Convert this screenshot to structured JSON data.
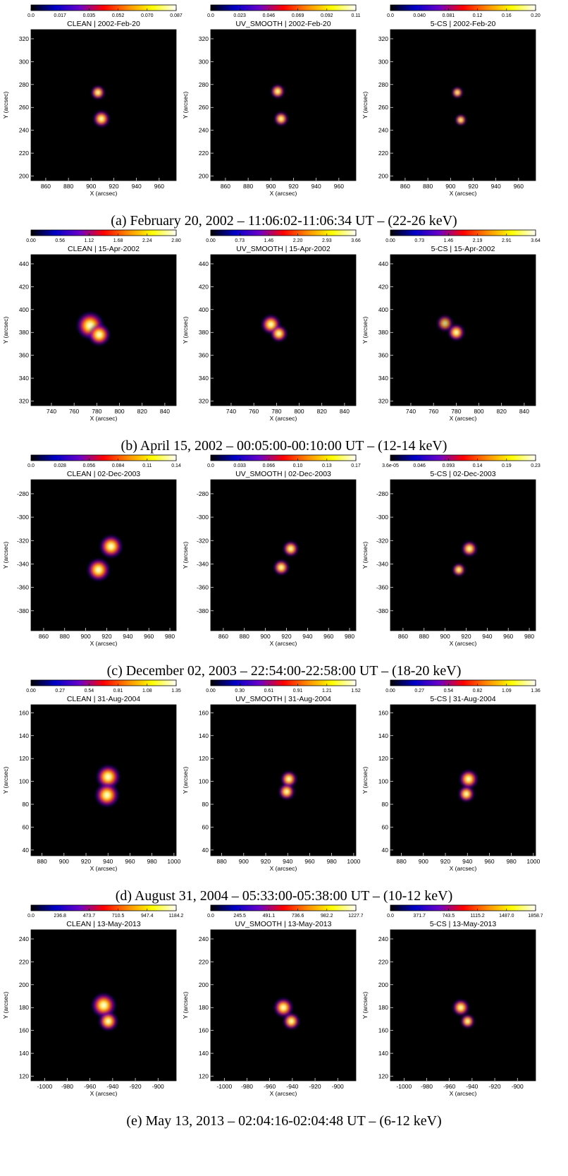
{
  "colormap": {
    "name": "blue-red-yellow-white",
    "stops": [
      "#000000",
      "#0000c8",
      "#6a00c8",
      "#ff0000",
      "#ff8c00",
      "#ffff00",
      "#ffffff"
    ]
  },
  "rows": [
    {
      "caption": "(a) February 20, 2002 – 11:06:02-11:06:34 UT – (22-26 keV)"
    },
    {
      "caption": "(b) April 15, 2002 – 00:05:00-00:10:00 UT – (12-14 keV)"
    },
    {
      "caption": "(c) December 02, 2003 – 22:54:00-22:58:00 UT – (18-20 keV)"
    },
    {
      "caption": "(d) August 31, 2004 – 05:33:00-05:38:00 UT – (10-12 keV)"
    },
    {
      "caption": "(e) May 13, 2013 – 02:04:16-02:04:48 UT – (6-12 keV)"
    }
  ],
  "chart_data": [
    {
      "type": "heatmap",
      "row": 0,
      "col": 0,
      "title": "CLEAN | 2002-Feb-20",
      "colorbar_ticks": [
        "0.0",
        "0.017",
        "0.035",
        "0.052",
        "0.070",
        "0.087"
      ],
      "xlabel": "X (arcsec)",
      "ylabel": "Y (arcsec)",
      "xticks": [
        860,
        880,
        900,
        920,
        940,
        960
      ],
      "yticks": [
        200,
        220,
        240,
        260,
        280,
        300,
        320
      ],
      "xlim": [
        847,
        975
      ],
      "ylim": [
        196,
        328
      ],
      "sources": [
        {
          "x": 906,
          "y": 273,
          "r": 5,
          "a": 1.0
        },
        {
          "x": 909,
          "y": 250,
          "r": 6,
          "a": 1.0
        }
      ]
    },
    {
      "type": "heatmap",
      "row": 0,
      "col": 1,
      "title": "UV_SMOOTH | 2002-Feb-20",
      "colorbar_ticks": [
        "0.0",
        "0.023",
        "0.046",
        "0.069",
        "0.092",
        "0.11"
      ],
      "xlabel": "X (arcsec)",
      "ylabel": "Y (arcsec)",
      "xticks": [
        860,
        880,
        900,
        920,
        940,
        960
      ],
      "yticks": [
        200,
        220,
        240,
        260,
        280,
        300,
        320
      ],
      "xlim": [
        847,
        975
      ],
      "ylim": [
        196,
        328
      ],
      "sources": [
        {
          "x": 906,
          "y": 274,
          "r": 5,
          "a": 1.0
        },
        {
          "x": 909,
          "y": 250,
          "r": 5,
          "a": 1.0
        }
      ]
    },
    {
      "type": "heatmap",
      "row": 0,
      "col": 2,
      "title": "5-CS | 2002-Feb-20",
      "colorbar_ticks": [
        "0.0",
        "0.040",
        "0.081",
        "0.12",
        "0.16",
        "0.20"
      ],
      "xlabel": "X (arcsec)",
      "ylabel": "Y (arcsec)",
      "xticks": [
        860,
        880,
        900,
        920,
        940,
        960
      ],
      "yticks": [
        200,
        220,
        240,
        260,
        280,
        300,
        320
      ],
      "xlim": [
        847,
        975
      ],
      "ylim": [
        196,
        328
      ],
      "sources": [
        {
          "x": 906,
          "y": 273,
          "r": 4,
          "a": 1.0
        },
        {
          "x": 909,
          "y": 249,
          "r": 4,
          "a": 1.0
        }
      ]
    },
    {
      "type": "heatmap",
      "row": 1,
      "col": 0,
      "title": "CLEAN | 15-Apr-2002",
      "colorbar_ticks": [
        "0.00",
        "0.56",
        "1.12",
        "1.68",
        "2.24",
        "2.80"
      ],
      "xlabel": "X (arcsec)",
      "ylabel": "Y (arcsec)",
      "xticks": [
        740,
        760,
        780,
        800,
        820,
        840
      ],
      "yticks": [
        320,
        340,
        360,
        380,
        400,
        420,
        440
      ],
      "xlim": [
        722,
        850
      ],
      "ylim": [
        316,
        448
      ],
      "sources": [
        {
          "x": 774,
          "y": 386,
          "r": 10,
          "a": 1.0
        },
        {
          "x": 782,
          "y": 378,
          "r": 8,
          "a": 1.0
        }
      ]
    },
    {
      "type": "heatmap",
      "row": 1,
      "col": 1,
      "title": "UV_SMOOTH | 15-Apr-2002",
      "colorbar_ticks": [
        "0.00",
        "0.73",
        "1.46",
        "2.20",
        "2.93",
        "3.66"
      ],
      "xlabel": "X (arcsec)",
      "ylabel": "Y (arcsec)",
      "xticks": [
        740,
        760,
        780,
        800,
        820,
        840
      ],
      "yticks": [
        320,
        340,
        360,
        380,
        400,
        420,
        440
      ],
      "xlim": [
        722,
        850
      ],
      "ylim": [
        316,
        448
      ],
      "sources": [
        {
          "x": 775,
          "y": 387,
          "r": 7,
          "a": 1.0
        },
        {
          "x": 782,
          "y": 379,
          "r": 6,
          "a": 1.0
        }
      ]
    },
    {
      "type": "heatmap",
      "row": 1,
      "col": 2,
      "title": "5-CS | 15-Apr-2002",
      "colorbar_ticks": [
        "0.00",
        "0.73",
        "1.46",
        "2.19",
        "2.91",
        "3.64"
      ],
      "xlabel": "X (arcsec)",
      "ylabel": "Y (arcsec)",
      "xticks": [
        740,
        760,
        780,
        800,
        820,
        840
      ],
      "yticks": [
        320,
        340,
        360,
        380,
        400,
        420,
        440
      ],
      "xlim": [
        722,
        850
      ],
      "ylim": [
        316,
        448
      ],
      "sources": [
        {
          "x": 770,
          "y": 388,
          "r": 6,
          "a": 0.8
        },
        {
          "x": 780,
          "y": 380,
          "r": 6,
          "a": 1.0
        }
      ]
    },
    {
      "type": "heatmap",
      "row": 2,
      "col": 0,
      "title": "CLEAN | 02-Dec-2003",
      "colorbar_ticks": [
        "0.0",
        "0.028",
        "0.056",
        "0.084",
        "0.11",
        "0.14"
      ],
      "xlabel": "X (arcsec)",
      "ylabel": "Y (arcsec)",
      "xticks": [
        860,
        880,
        900,
        920,
        940,
        960,
        980
      ],
      "yticks": [
        -380,
        -360,
        -340,
        -320,
        -300,
        -280
      ],
      "xlim": [
        848,
        986
      ],
      "ylim": [
        -397,
        -268
      ],
      "sources": [
        {
          "x": 924,
          "y": -325,
          "r": 9,
          "a": 1.0
        },
        {
          "x": 912,
          "y": -345,
          "r": 9,
          "a": 1.0
        }
      ]
    },
    {
      "type": "heatmap",
      "row": 2,
      "col": 1,
      "title": "UV_SMOOTH | 02-Dec-2003",
      "colorbar_ticks": [
        "0.0",
        "0.033",
        "0.066",
        "0.10",
        "0.13",
        "0.17"
      ],
      "xlabel": "X (arcsec)",
      "ylabel": "Y (arcsec)",
      "xticks": [
        860,
        880,
        900,
        920,
        940,
        960,
        980
      ],
      "yticks": [
        -380,
        -360,
        -340,
        -320,
        -300,
        -280
      ],
      "xlim": [
        848,
        986
      ],
      "ylim": [
        -397,
        -268
      ],
      "sources": [
        {
          "x": 924,
          "y": -327,
          "r": 6,
          "a": 1.0
        },
        {
          "x": 915,
          "y": -343,
          "r": 6,
          "a": 1.0
        }
      ]
    },
    {
      "type": "heatmap",
      "row": 2,
      "col": 2,
      "title": "5-CS | 02-Dec-2003",
      "colorbar_ticks": [
        "3.6e-05",
        "0.046",
        "0.093",
        "0.14",
        "0.19",
        "0.23"
      ],
      "xlabel": "X (arcsec)",
      "ylabel": "Y (arcsec)",
      "xticks": [
        860,
        880,
        900,
        920,
        940,
        960,
        980
      ],
      "yticks": [
        -380,
        -360,
        -340,
        -320,
        -300,
        -280
      ],
      "xlim": [
        848,
        986
      ],
      "ylim": [
        -397,
        -268
      ],
      "sources": [
        {
          "x": 923,
          "y": -327,
          "r": 6,
          "a": 1.0
        },
        {
          "x": 913,
          "y": -345,
          "r": 5,
          "a": 1.0
        }
      ]
    },
    {
      "type": "heatmap",
      "row": 3,
      "col": 0,
      "title": "CLEAN | 31-Aug-2004",
      "colorbar_ticks": [
        "0.00",
        "0.27",
        "0.54",
        "0.81",
        "1.08",
        "1.35"
      ],
      "xlabel": "X (arcsec)",
      "ylabel": "Y (arcsec)",
      "xticks": [
        880,
        900,
        920,
        940,
        960,
        980,
        1000
      ],
      "yticks": [
        40,
        60,
        80,
        100,
        120,
        140,
        160
      ],
      "xlim": [
        870,
        1002
      ],
      "ylim": [
        35,
        167
      ],
      "sources": [
        {
          "x": 940,
          "y": 104,
          "r": 9,
          "a": 1.0
        },
        {
          "x": 939,
          "y": 88,
          "r": 9,
          "a": 1.0
        }
      ]
    },
    {
      "type": "heatmap",
      "row": 3,
      "col": 1,
      "title": "UV_SMOOTH | 31-Aug-2004",
      "colorbar_ticks": [
        "0.00",
        "0.30",
        "0.61",
        "0.91",
        "1.21",
        "1.52"
      ],
      "xlabel": "X (arcsec)",
      "ylabel": "Y (arcsec)",
      "xticks": [
        880,
        900,
        920,
        940,
        960,
        980,
        1000
      ],
      "yticks": [
        40,
        60,
        80,
        100,
        120,
        140,
        160
      ],
      "xlim": [
        870,
        1002
      ],
      "ylim": [
        35,
        167
      ],
      "sources": [
        {
          "x": 941,
          "y": 102,
          "r": 6,
          "a": 1.0
        },
        {
          "x": 939,
          "y": 91,
          "r": 6,
          "a": 1.0
        }
      ]
    },
    {
      "type": "heatmap",
      "row": 3,
      "col": 2,
      "title": "5-CS | 31-Aug-2004",
      "colorbar_ticks": [
        "0.00",
        "0.27",
        "0.54",
        "0.82",
        "1.09",
        "1.36"
      ],
      "xlabel": "X (arcsec)",
      "ylabel": "Y (arcsec)",
      "xticks": [
        880,
        900,
        920,
        940,
        960,
        980,
        1000
      ],
      "yticks": [
        40,
        60,
        80,
        100,
        120,
        140,
        160
      ],
      "xlim": [
        870,
        1002
      ],
      "ylim": [
        35,
        167
      ],
      "sources": [
        {
          "x": 941,
          "y": 102,
          "r": 7,
          "a": 1.0
        },
        {
          "x": 939,
          "y": 89,
          "r": 6,
          "a": 1.0
        }
      ]
    },
    {
      "type": "heatmap",
      "row": 4,
      "col": 0,
      "title": "CLEAN | 13-May-2013",
      "colorbar_ticks": [
        "0.0",
        "236.8",
        "473.7",
        "710.5",
        "947.4",
        "1184.2"
      ],
      "xlabel": "X (arcsec)",
      "ylabel": "Y (arcsec)",
      "xticks": [
        -1000,
        -980,
        -960,
        -940,
        -920,
        -900
      ],
      "yticks": [
        120,
        140,
        160,
        180,
        200,
        220,
        240
      ],
      "xlim": [
        -1012,
        -884
      ],
      "ylim": [
        116,
        248
      ],
      "sources": [
        {
          "x": -948,
          "y": 182,
          "r": 9,
          "a": 1.0
        },
        {
          "x": -944,
          "y": 168,
          "r": 7,
          "a": 1.0
        }
      ]
    },
    {
      "type": "heatmap",
      "row": 4,
      "col": 1,
      "title": "UV_SMOOTH | 13-May-2013",
      "colorbar_ticks": [
        "0.0",
        "245.5",
        "491.1",
        "736.6",
        "982.2",
        "1227.7"
      ],
      "xlabel": "X (arcsec)",
      "ylabel": "Y (arcsec)",
      "xticks": [
        -1000,
        -980,
        -960,
        -940,
        -920,
        -900
      ],
      "yticks": [
        120,
        140,
        160,
        180,
        200,
        220,
        240
      ],
      "xlim": [
        -1012,
        -884
      ],
      "ylim": [
        116,
        248
      ],
      "sources": [
        {
          "x": -948,
          "y": 180,
          "r": 7,
          "a": 1.0
        },
        {
          "x": -941,
          "y": 168,
          "r": 6,
          "a": 1.0
        }
      ]
    },
    {
      "type": "heatmap",
      "row": 4,
      "col": 2,
      "title": "5-CS | 13-May-2013",
      "colorbar_ticks": [
        "0.0",
        "371.7",
        "743.5",
        "1115.2",
        "1487.0",
        "1858.7"
      ],
      "xlabel": "X (arcsec)",
      "ylabel": "Y (arcsec)",
      "xticks": [
        -1000,
        -980,
        -960,
        -940,
        -920,
        -900
      ],
      "yticks": [
        120,
        140,
        160,
        180,
        200,
        220,
        240
      ],
      "xlim": [
        -1012,
        -884
      ],
      "ylim": [
        116,
        248
      ],
      "sources": [
        {
          "x": -950,
          "y": 180,
          "r": 6,
          "a": 1.0
        },
        {
          "x": -944,
          "y": 168,
          "r": 5,
          "a": 1.0
        }
      ]
    }
  ]
}
